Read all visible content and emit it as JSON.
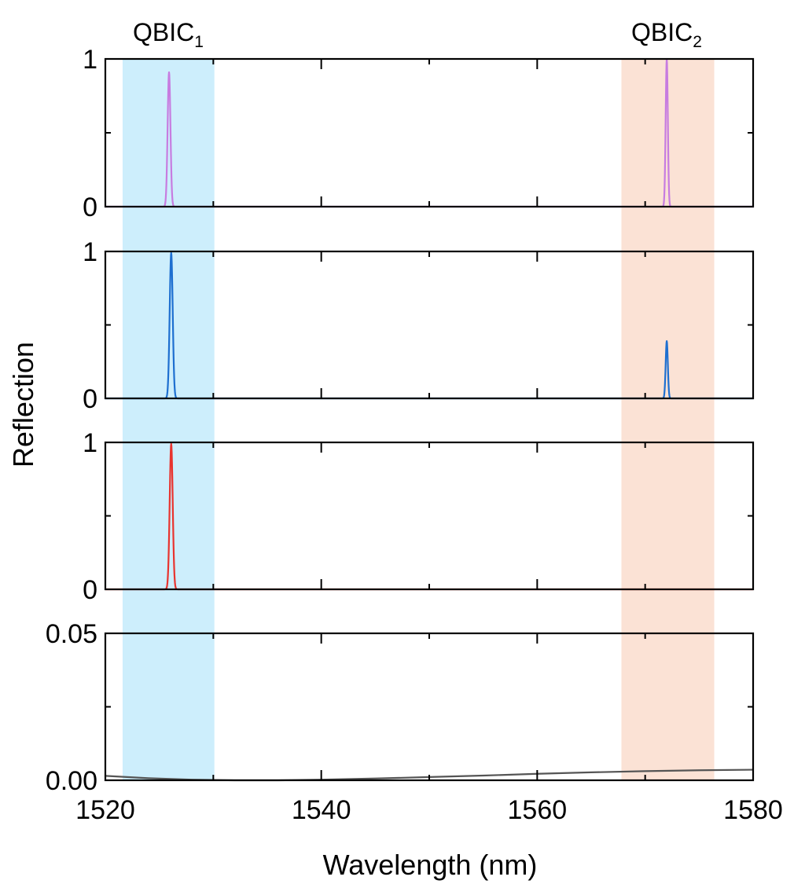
{
  "chart_data": {
    "type": "line",
    "xlabel": "Wavelength (nm)",
    "ylabel": "Reflection",
    "xlim": [
      1520,
      1580
    ],
    "x_ticks": [
      "1520",
      "1540",
      "1560",
      "1580"
    ],
    "bands": [
      {
        "label": "QBIC",
        "sub": "1",
        "x_range": [
          1521.6,
          1530.1
        ],
        "color": "#cdeefc"
      },
      {
        "label": "QBIC",
        "sub": "2",
        "x_range": [
          1567.8,
          1576.4
        ],
        "color": "#fbe2d5"
      }
    ],
    "panels": [
      {
        "ylim": [
          0,
          1
        ],
        "y_tick_labels": [
          "0",
          "1"
        ],
        "series": [
          {
            "color": "#c77ce0",
            "baseline": 0,
            "peaks": [
              {
                "x": 1525.9,
                "height": 0.91,
                "width": 0.13
              },
              {
                "x": 1572.0,
                "height": 1.0,
                "width": 0.1
              }
            ]
          }
        ]
      },
      {
        "ylim": [
          0,
          1
        ],
        "y_tick_labels": [
          "0",
          "1"
        ],
        "series": [
          {
            "color": "#1e6fd0",
            "baseline": 0,
            "peaks": [
              {
                "x": 1526.1,
                "height": 0.99,
                "width": 0.14
              },
              {
                "x": 1572.0,
                "height": 0.39,
                "width": 0.1
              }
            ]
          }
        ]
      },
      {
        "ylim": [
          0,
          1
        ],
        "y_tick_labels": [
          "0",
          "1"
        ],
        "series": [
          {
            "color": "#e8342f",
            "baseline": 0,
            "peaks": [
              {
                "x": 1526.1,
                "height": 0.99,
                "width": 0.14
              }
            ]
          }
        ]
      },
      {
        "ylim": [
          0,
          0.05
        ],
        "y_tick_labels": [
          "0.00",
          "0.05"
        ],
        "series": [
          {
            "color": "#555555",
            "points": [
              [
                1520,
                0.0015
              ],
              [
                1524,
                0.0007
              ],
              [
                1528,
                0.0002
              ],
              [
                1532,
                0.0
              ],
              [
                1536,
                0.0
              ],
              [
                1540,
                0.0002
              ],
              [
                1545,
                0.0006
              ],
              [
                1550,
                0.0011
              ],
              [
                1555,
                0.0016
              ],
              [
                1560,
                0.0022
              ],
              [
                1565,
                0.0027
              ],
              [
                1570,
                0.0031
              ],
              [
                1575,
                0.0034
              ],
              [
                1580,
                0.0036
              ]
            ]
          }
        ]
      }
    ]
  }
}
